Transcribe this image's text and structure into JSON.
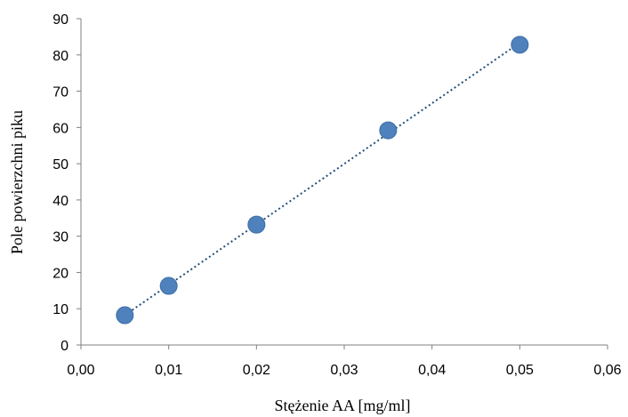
{
  "chart_data": {
    "type": "scatter",
    "xlabel": "Stężenie AA [mg/ml]",
    "ylabel": "Pole powierzchni piku",
    "xlim": [
      0,
      0.06
    ],
    "ylim": [
      0,
      90
    ],
    "x_ticks": [
      "0,00",
      "0,01",
      "0,02",
      "0,03",
      "0,04",
      "0,05",
      "0,06"
    ],
    "y_ticks": [
      "0",
      "10",
      "20",
      "30",
      "40",
      "50",
      "60",
      "70",
      "80",
      "90"
    ],
    "grid": false,
    "legend": "none",
    "series": [
      {
        "x": [
          0.005,
          0.01,
          0.02,
          0.035,
          0.05
        ],
        "y": [
          8.2,
          16.3,
          33.2,
          59.2,
          82.8
        ],
        "color": "#4f81bd",
        "trendline": {
          "type": "linear",
          "style": "dotted",
          "color": "#1f4e79"
        }
      }
    ]
  }
}
